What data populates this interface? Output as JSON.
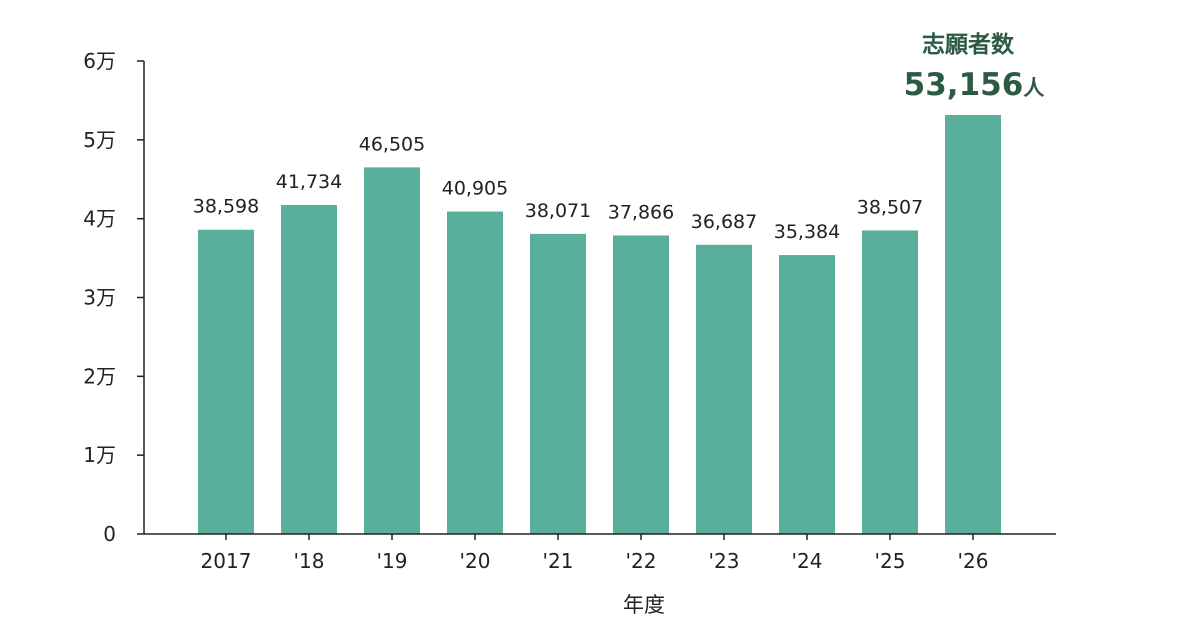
{
  "chart_data": {
    "type": "bar",
    "xlabel": "年度",
    "ylabel": "",
    "categories": [
      "2017",
      "'18",
      "'19",
      "'20",
      "'21",
      "'22",
      "'23",
      "'24",
      "'25",
      "'26"
    ],
    "values": [
      38598,
      41734,
      46505,
      40905,
      38071,
      37866,
      36687,
      35384,
      38507,
      53156
    ],
    "value_labels": [
      "38,598",
      "41,734",
      "46,505",
      "40,905",
      "38,071",
      "37,866",
      "36,687",
      "35,384",
      "38,507",
      ""
    ],
    "ylim": [
      0,
      60000
    ],
    "yticks": [
      0,
      10000,
      20000,
      30000,
      40000,
      50000,
      60000
    ],
    "ytick_labels": [
      "0",
      "1万",
      "2万",
      "3万",
      "4万",
      "5万",
      "6万"
    ],
    "grid": false,
    "bar_color": "#5aaf9c",
    "highlight": {
      "title": "志願者数",
      "value": "53,156",
      "unit": "人",
      "color": "#2d5a45"
    }
  }
}
